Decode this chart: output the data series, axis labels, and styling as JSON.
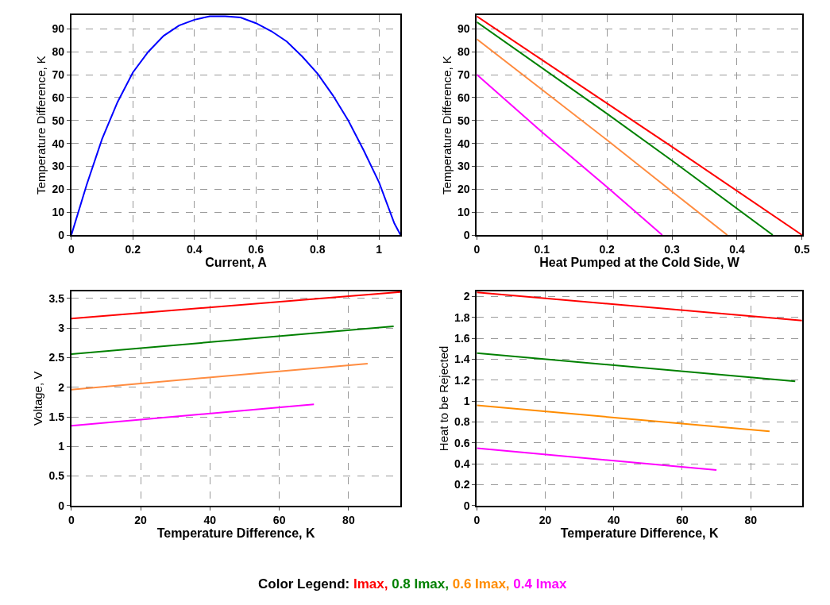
{
  "chart_data": [
    {
      "type": "line",
      "xlabel": "Current, A",
      "ylabel": "Temperature Difference, K",
      "xlim": [
        0,
        1.07
      ],
      "ylim": [
        0,
        96
      ],
      "xticks": [
        0,
        0.2,
        0.4,
        0.6,
        0.8,
        1
      ],
      "yticks": [
        0,
        10,
        20,
        30,
        40,
        50,
        60,
        70,
        80,
        90
      ],
      "grid": true,
      "series": [
        {
          "color": "#0000ff",
          "x": [
            0,
            0.05,
            0.1,
            0.15,
            0.2,
            0.25,
            0.3,
            0.35,
            0.4,
            0.45,
            0.5,
            0.55,
            0.6,
            0.65,
            0.7,
            0.75,
            0.8,
            0.85,
            0.9,
            0.95,
            1.0,
            1.05,
            1.07
          ],
          "values": [
            0,
            22,
            42,
            58,
            71,
            80,
            87,
            91.5,
            94,
            95.5,
            95.5,
            95,
            92.5,
            89,
            84.5,
            78,
            70.5,
            61,
            50,
            37,
            23,
            5,
            0
          ]
        }
      ]
    },
    {
      "type": "line",
      "xlabel": "Heat Pumped at the Cold Side, W",
      "ylabel": "Temperature Difference, K",
      "xlim": [
        0,
        0.5
      ],
      "ylim": [
        0,
        96
      ],
      "xticks": [
        0,
        0.1,
        0.2,
        0.3,
        0.4,
        0.5
      ],
      "yticks": [
        0,
        10,
        20,
        30,
        40,
        50,
        60,
        70,
        80,
        90
      ],
      "grid": true,
      "series": [
        {
          "color": "#ff0000",
          "x": [
            0,
            0.2,
            0.3,
            0.5
          ],
          "values": [
            95.5,
            57.5,
            38.5,
            0
          ]
        },
        {
          "color": "#008000",
          "x": [
            0,
            0.2,
            0.3,
            0.455
          ],
          "values": [
            93,
            53,
            32.5,
            0
          ]
        },
        {
          "color": "#ff8c40",
          "x": [
            0,
            0.2,
            0.3,
            0.385
          ],
          "values": [
            85.5,
            41.5,
            19,
            0
          ]
        },
        {
          "color": "#ff00ff",
          "x": [
            0,
            0.1,
            0.2,
            0.285
          ],
          "values": [
            70,
            45,
            21,
            0
          ]
        }
      ]
    },
    {
      "type": "line",
      "xlabel": "Temperature Difference, K",
      "ylabel": "Voltage, V",
      "xlim": [
        0,
        95
      ],
      "ylim": [
        0,
        3.62
      ],
      "xticks": [
        0,
        20,
        40,
        60,
        80
      ],
      "yticks": [
        0,
        0.5,
        1,
        1.5,
        2,
        2.5,
        3,
        3.5
      ],
      "grid": true,
      "series": [
        {
          "color": "#ff0000",
          "x": [
            0,
            95
          ],
          "values": [
            3.16,
            3.61
          ]
        },
        {
          "color": "#008000",
          "x": [
            0,
            93
          ],
          "values": [
            2.56,
            3.03
          ]
        },
        {
          "color": "#ff8c40",
          "x": [
            0,
            85.5
          ],
          "values": [
            1.96,
            2.4
          ]
        },
        {
          "color": "#ff00ff",
          "x": [
            0,
            70
          ],
          "values": [
            1.35,
            1.71
          ]
        }
      ]
    },
    {
      "type": "line",
      "xlabel": "Temperature Difference, K",
      "ylabel": "Heat to be Rejected",
      "xlim": [
        0,
        95
      ],
      "ylim": [
        0,
        2.05
      ],
      "xticks": [
        0,
        20,
        40,
        60,
        80
      ],
      "yticks": [
        0,
        0.2,
        0.4,
        0.6,
        0.8,
        1,
        1.2,
        1.4,
        1.6,
        1.8,
        2
      ],
      "grid": true,
      "legend": "bottom",
      "legend_title": "Color Legend:",
      "series": [
        {
          "name": "Imax,",
          "color": "#ff0000",
          "x": [
            0,
            95
          ],
          "values": [
            2.04,
            1.77
          ]
        },
        {
          "name": "0.8 Imax,",
          "color": "#008000",
          "x": [
            0,
            93
          ],
          "values": [
            1.46,
            1.19
          ]
        },
        {
          "name": "0.6 Imax,",
          "color": "#ff8c00",
          "x": [
            0,
            85.5
          ],
          "values": [
            0.96,
            0.71
          ]
        },
        {
          "name": "0.4 Imax",
          "color": "#ff00ff",
          "x": [
            0,
            70
          ],
          "values": [
            0.55,
            0.34
          ]
        }
      ]
    }
  ]
}
